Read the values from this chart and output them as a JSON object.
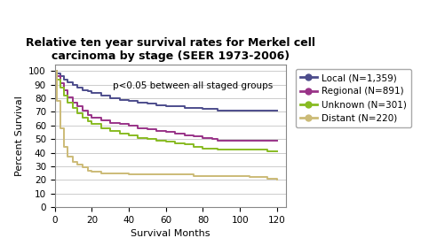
{
  "title": "Relative ten year survival rates for Merkel cell\ncarcinoma by stage (SEER 1973-2006)",
  "xlabel": "Survival Months",
  "ylabel": "Percent Survival",
  "annotation": "p<0.05 between all staged groups",
  "xlim": [
    0,
    125
  ],
  "ylim": [
    0,
    105
  ],
  "xticks": [
    0,
    20,
    40,
    60,
    80,
    100,
    120
  ],
  "yticks": [
    0,
    10,
    20,
    30,
    40,
    50,
    60,
    70,
    80,
    90,
    100
  ],
  "background_color": "#ffffff",
  "grid_color": "#cccccc",
  "series": [
    {
      "label": "Local (N=1,359)",
      "color": "#4d4d8c",
      "x": [
        0,
        1,
        3,
        5,
        7,
        10,
        12,
        15,
        18,
        20,
        25,
        30,
        35,
        40,
        45,
        50,
        55,
        60,
        65,
        70,
        75,
        80,
        85,
        88,
        90,
        95,
        100,
        105,
        110,
        115,
        120
      ],
      "y": [
        100,
        98,
        96,
        94,
        92,
        90,
        88,
        86,
        85,
        84,
        82,
        80,
        79,
        78,
        77,
        76,
        75,
        74,
        74,
        73,
        73,
        72,
        72,
        71,
        71,
        71,
        71,
        71,
        71,
        71,
        71
      ]
    },
    {
      "label": "Regional (N=891)",
      "color": "#993388",
      "x": [
        0,
        1,
        3,
        5,
        7,
        10,
        12,
        15,
        18,
        20,
        25,
        30,
        35,
        40,
        45,
        50,
        55,
        60,
        65,
        70,
        75,
        80,
        85,
        88,
        90,
        95,
        100,
        105,
        110,
        115,
        120
      ],
      "y": [
        100,
        96,
        91,
        86,
        81,
        77,
        74,
        71,
        68,
        66,
        64,
        62,
        61,
        60,
        58,
        57,
        56,
        55,
        54,
        53,
        52,
        51,
        50,
        49,
        49,
        49,
        49,
        49,
        49,
        49,
        49
      ]
    },
    {
      "label": "Unknown (N=301)",
      "color": "#88bb22",
      "x": [
        0,
        1,
        3,
        5,
        7,
        10,
        12,
        15,
        18,
        20,
        25,
        30,
        35,
        40,
        45,
        50,
        55,
        60,
        65,
        70,
        75,
        80,
        85,
        88,
        90,
        95,
        100,
        105,
        110,
        115,
        120
      ],
      "y": [
        100,
        94,
        88,
        82,
        77,
        73,
        69,
        66,
        63,
        61,
        58,
        56,
        54,
        53,
        51,
        50,
        49,
        48,
        47,
        46,
        44,
        43,
        43,
        42,
        42,
        42,
        42,
        42,
        42,
        41,
        41
      ]
    },
    {
      "label": "Distant (N=220)",
      "color": "#ccbb77",
      "x": [
        0,
        1,
        3,
        5,
        7,
        10,
        12,
        15,
        18,
        20,
        25,
        30,
        35,
        40,
        45,
        50,
        55,
        60,
        65,
        70,
        75,
        80,
        85,
        88,
        90,
        95,
        100,
        105,
        110,
        115,
        120
      ],
      "y": [
        100,
        78,
        58,
        44,
        37,
        33,
        31,
        29,
        27,
        26,
        25,
        25,
        25,
        24,
        24,
        24,
        24,
        24,
        24,
        24,
        23,
        23,
        23,
        23,
        23,
        23,
        23,
        22,
        22,
        21,
        20
      ]
    }
  ],
  "title_fontsize": 9,
  "axis_label_fontsize": 8,
  "tick_fontsize": 7.5,
  "legend_fontsize": 7.5,
  "annot_fontsize": 7.5
}
